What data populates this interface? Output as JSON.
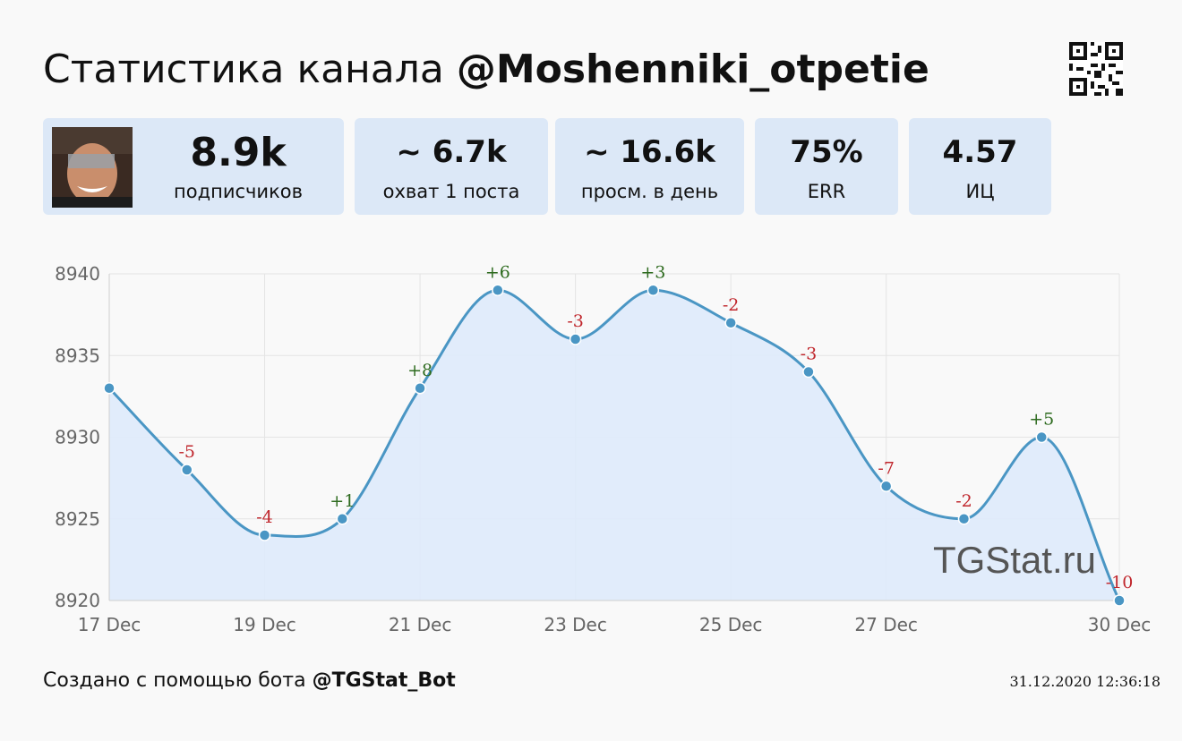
{
  "header": {
    "title_prefix": "Статистика канала ",
    "title_handle": "@Moshenniki_otpetie"
  },
  "stats": [
    {
      "value": "8.9k",
      "label": "подписчиков"
    },
    {
      "value": "~ 6.7k",
      "label": "охват 1 поста"
    },
    {
      "value": "~ 16.6k",
      "label": "просм. в день"
    },
    {
      "value": "75%",
      "label": "ERR"
    },
    {
      "value": "4.57",
      "label": "ИЦ"
    }
  ],
  "chart_data": {
    "type": "area",
    "x": [
      "17 Dec",
      "18 Dec",
      "19 Dec",
      "20 Dec",
      "21 Dec",
      "22 Dec",
      "23 Dec",
      "24 Dec",
      "25 Dec",
      "26 Dec",
      "27 Dec",
      "28 Dec",
      "29 Dec",
      "30 Dec"
    ],
    "values": [
      8933,
      8928,
      8924,
      8925,
      8933,
      8939,
      8936,
      8939,
      8937,
      8934,
      8927,
      8925,
      8930,
      8920
    ],
    "data_labels": [
      "",
      "-5",
      "-4",
      "+1",
      "+8",
      "+6",
      "-3",
      "+3",
      "-2",
      "-3",
      "-7",
      "-2",
      "+5",
      "-10"
    ],
    "x_tick_labels": [
      "17 Dec",
      "19 Dec",
      "21 Dec",
      "23 Dec",
      "25 Dec",
      "27 Dec",
      "30 Dec"
    ],
    "y_ticks": [
      8920,
      8925,
      8930,
      8935,
      8940
    ],
    "ylim": [
      8920,
      8940
    ],
    "grid": true,
    "watermark": "TGStat.ru",
    "colors": {
      "line": "#4a96c4",
      "fill": "#deeafb",
      "positive": "#2e6b1f",
      "negative": "#c0262c",
      "axis_text": "#666666",
      "grid": "#e4e4e4"
    }
  },
  "footer": {
    "created_prefix": "Создано с помощью бота ",
    "bot": "@TGStat_Bot",
    "timestamp": "31.12.2020 12:36:18"
  },
  "icons": {
    "qr": "qr-code-icon",
    "avatar": "channel-avatar"
  }
}
